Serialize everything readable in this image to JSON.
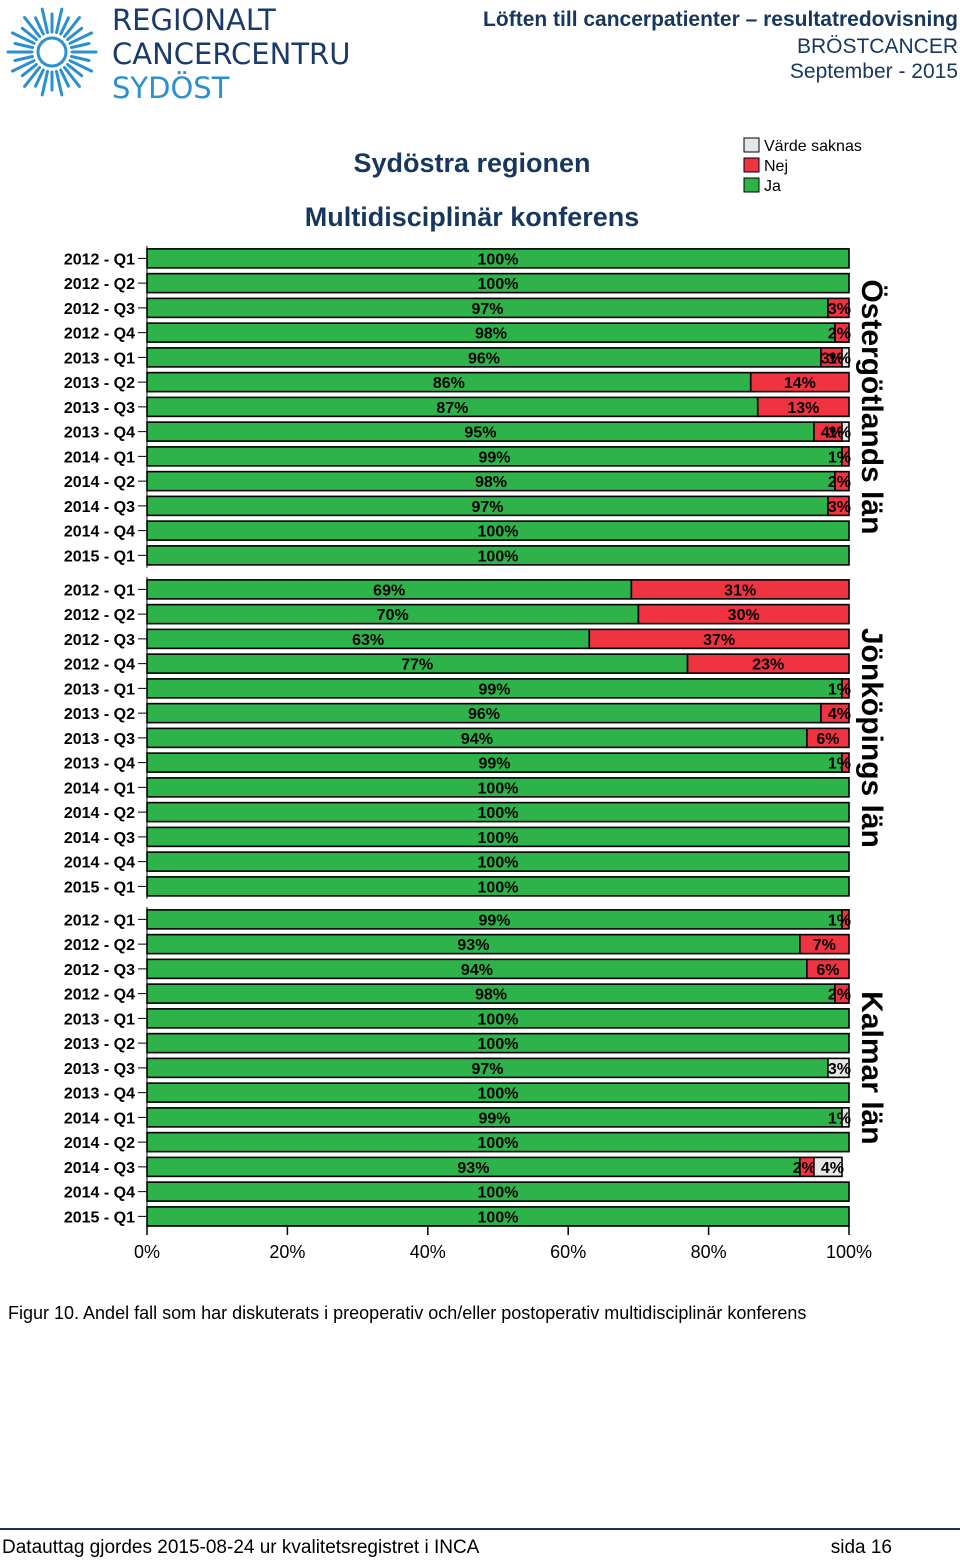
{
  "logo": {
    "line1": "REGIONALT",
    "line2": "CANCERCENTRUM",
    "line3": "SYDÖST"
  },
  "header": {
    "title": "Löften till cancerpatienter – resultatredovisning",
    "subtitle": "BRÖSTCANCER",
    "date": "September - 2015"
  },
  "caption": "Figur 10. Andel fall som har diskuterats i preoperativ och/eller postoperativ multidisciplinär konferens",
  "footer": {
    "source": "Datauttag gjordes 2015-08-24 ur kvalitetsregistret i INCA",
    "page": "sida 16"
  },
  "colors": {
    "ja": "#2db34a",
    "nej": "#ef3340",
    "saknas": "#e6e6e6"
  },
  "chart_data": {
    "type": "bar",
    "orientation": "horizontal-stacked",
    "title": "Sydöstra regionen",
    "subtitle": "Multidisciplinär konferens",
    "legend": {
      "position": "top-right",
      "entries": [
        "Värde saknas",
        "Nej",
        "Ja"
      ]
    },
    "x_ticks": [
      "0%",
      "20%",
      "40%",
      "60%",
      "80%",
      "100%"
    ],
    "xlim": [
      0,
      100
    ],
    "series_names": [
      "Ja",
      "Nej",
      "Värde saknas"
    ],
    "categories": [
      "2012 - Q1",
      "2012 - Q2",
      "2012 - Q3",
      "2012 - Q4",
      "2013 - Q1",
      "2013 - Q2",
      "2013 - Q3",
      "2013 - Q4",
      "2014 - Q1",
      "2014 - Q2",
      "2014 - Q3",
      "2014 - Q4",
      "2015 - Q1"
    ],
    "panels": [
      {
        "name": "Östergötlands län",
        "ja": [
          100,
          100,
          97,
          98,
          96,
          86,
          87,
          95,
          99,
          98,
          97,
          100,
          100
        ],
        "nej": [
          0,
          0,
          3,
          2,
          3,
          14,
          13,
          4,
          1,
          2,
          3,
          0,
          0
        ],
        "saknas": [
          0,
          0,
          0,
          0,
          1,
          0,
          0,
          1,
          0,
          0,
          0,
          0,
          0
        ]
      },
      {
        "name": "Jönköpings län",
        "ja": [
          69,
          70,
          63,
          77,
          99,
          96,
          94,
          99,
          100,
          100,
          100,
          100,
          100
        ],
        "nej": [
          31,
          30,
          37,
          23,
          1,
          4,
          6,
          1,
          0,
          0,
          0,
          0,
          0
        ],
        "saknas": [
          0,
          0,
          0,
          0,
          0,
          0,
          0,
          0,
          0,
          0,
          0,
          0,
          0
        ]
      },
      {
        "name": "Kalmar län",
        "ja": [
          99,
          93,
          94,
          98,
          100,
          100,
          97,
          100,
          99,
          100,
          93,
          100,
          100
        ],
        "nej": [
          1,
          7,
          6,
          2,
          0,
          0,
          0,
          0,
          0,
          0,
          2,
          0,
          0
        ],
        "saknas": [
          0,
          0,
          0,
          0,
          0,
          0,
          3,
          0,
          1,
          0,
          4,
          0,
          0
        ]
      }
    ]
  }
}
